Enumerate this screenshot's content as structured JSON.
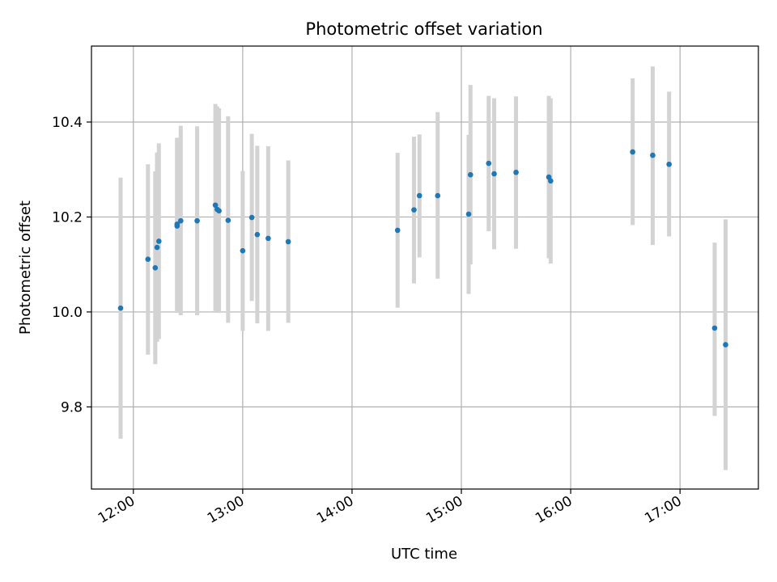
{
  "chart_data": {
    "type": "scatter",
    "title": "Photometric offset variation",
    "xlabel": "UTC time",
    "ylabel": "Photometric offset",
    "x_ticks": [
      "12:00",
      "13:00",
      "14:00",
      "15:00",
      "16:00",
      "17:00"
    ],
    "y_ticks": [
      "9.8",
      "10.0",
      "10.2",
      "10.4"
    ],
    "xlim": [
      "11:37",
      "17:43"
    ],
    "ylim": [
      9.627,
      10.56
    ],
    "grid": true,
    "legend": "none",
    "colors": {
      "point": "#1f77b4",
      "errorbar": "#d3d3d3",
      "grid": "#b0b0b0"
    },
    "series": [
      {
        "points": [
          {
            "t": "11:53",
            "y": 10.008,
            "err_low": 9.733,
            "err_high": 10.283
          },
          {
            "t": "12:08",
            "y": 10.111,
            "err_low": 9.91,
            "err_high": 10.311
          },
          {
            "t": "12:12",
            "y": 10.093,
            "err_low": 9.89,
            "err_high": 10.296
          },
          {
            "t": "12:13",
            "y": 10.136,
            "err_low": 9.937,
            "err_high": 10.336
          },
          {
            "t": "12:14",
            "y": 10.149,
            "err_low": 9.943,
            "err_high": 10.355
          },
          {
            "t": "12:24",
            "y": 10.181,
            "err_low": 9.998,
            "err_high": 10.365
          },
          {
            "t": "12:24",
            "y": 10.185,
            "err_low": 10.002,
            "err_high": 10.367
          },
          {
            "t": "12:26",
            "y": 10.192,
            "err_low": 9.993,
            "err_high": 10.392
          },
          {
            "t": "12:35",
            "y": 10.192,
            "err_low": 9.993,
            "err_high": 10.391
          },
          {
            "t": "12:45",
            "y": 10.225,
            "err_low": 10.002,
            "err_high": 10.438
          },
          {
            "t": "12:46",
            "y": 10.216,
            "err_low": 10.0,
            "err_high": 10.433
          },
          {
            "t": "12:47",
            "y": 10.213,
            "err_low": 9.998,
            "err_high": 10.429
          },
          {
            "t": "12:52",
            "y": 10.193,
            "err_low": 9.977,
            "err_high": 10.412
          },
          {
            "t": "13:00",
            "y": 10.129,
            "err_low": 9.96,
            "err_high": 10.297
          },
          {
            "t": "13:05",
            "y": 10.199,
            "err_low": 10.023,
            "err_high": 10.375
          },
          {
            "t": "13:08",
            "y": 10.163,
            "err_low": 9.976,
            "err_high": 10.35
          },
          {
            "t": "13:14",
            "y": 10.155,
            "err_low": 9.96,
            "err_high": 10.349
          },
          {
            "t": "13:25",
            "y": 10.148,
            "err_low": 9.977,
            "err_high": 10.319
          },
          {
            "t": "14:25",
            "y": 10.172,
            "err_low": 10.009,
            "err_high": 10.335
          },
          {
            "t": "14:34",
            "y": 10.215,
            "err_low": 10.06,
            "err_high": 10.369
          },
          {
            "t": "14:37",
            "y": 10.245,
            "err_low": 10.115,
            "err_high": 10.374
          },
          {
            "t": "14:47",
            "y": 10.245,
            "err_low": 10.07,
            "err_high": 10.421
          },
          {
            "t": "15:04",
            "y": 10.206,
            "err_low": 10.038,
            "err_high": 10.373
          },
          {
            "t": "15:05",
            "y": 10.289,
            "err_low": 10.1,
            "err_high": 10.478
          },
          {
            "t": "15:15",
            "y": 10.313,
            "err_low": 10.17,
            "err_high": 10.455
          },
          {
            "t": "15:18",
            "y": 10.291,
            "err_low": 10.132,
            "err_high": 10.45
          },
          {
            "t": "15:30",
            "y": 10.294,
            "err_low": 10.133,
            "err_high": 10.454
          },
          {
            "t": "15:48",
            "y": 10.284,
            "err_low": 10.113,
            "err_high": 10.455
          },
          {
            "t": "15:49",
            "y": 10.276,
            "err_low": 10.102,
            "err_high": 10.45
          },
          {
            "t": "16:34",
            "y": 10.337,
            "err_low": 10.183,
            "err_high": 10.492
          },
          {
            "t": "16:45",
            "y": 10.33,
            "err_low": 10.141,
            "err_high": 10.517
          },
          {
            "t": "16:54",
            "y": 10.311,
            "err_low": 10.159,
            "err_high": 10.464
          },
          {
            "t": "17:19",
            "y": 9.966,
            "err_low": 9.781,
            "err_high": 10.146
          },
          {
            "t": "17:25",
            "y": 9.931,
            "err_low": 9.667,
            "err_high": 10.195
          }
        ]
      }
    ]
  }
}
